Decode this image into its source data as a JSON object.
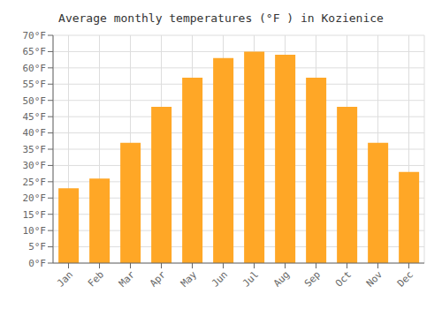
{
  "chart_data": {
    "type": "bar",
    "title": "Average monthly temperatures (°F ) in Kozienice",
    "categories": [
      "Jan",
      "Feb",
      "Mar",
      "Apr",
      "May",
      "Jun",
      "Jul",
      "Aug",
      "Sep",
      "Oct",
      "Nov",
      "Dec"
    ],
    "values": [
      23,
      26,
      37,
      48,
      57,
      63,
      65,
      64,
      57,
      48,
      37,
      28
    ],
    "color": "#FFA726",
    "ylim": [
      0,
      70
    ],
    "yticks": [
      {
        "value": 0,
        "label": "0°F"
      },
      {
        "value": 5,
        "label": "5°F"
      },
      {
        "value": 10,
        "label": "10°F"
      },
      {
        "value": 15,
        "label": "15°F"
      },
      {
        "value": 20,
        "label": "20°F"
      },
      {
        "value": 25,
        "label": "25°F"
      },
      {
        "value": 30,
        "label": "30°F"
      },
      {
        "value": 35,
        "label": "35°F"
      },
      {
        "value": 40,
        "label": "40°F"
      },
      {
        "value": 45,
        "label": "45°F"
      },
      {
        "value": 50,
        "label": "50°F"
      },
      {
        "value": 55,
        "label": "55°F"
      },
      {
        "value": 60,
        "label": "60°F"
      },
      {
        "value": 65,
        "label": "65°F"
      },
      {
        "value": 70,
        "label": "70°F"
      }
    ],
    "grid": true
  }
}
